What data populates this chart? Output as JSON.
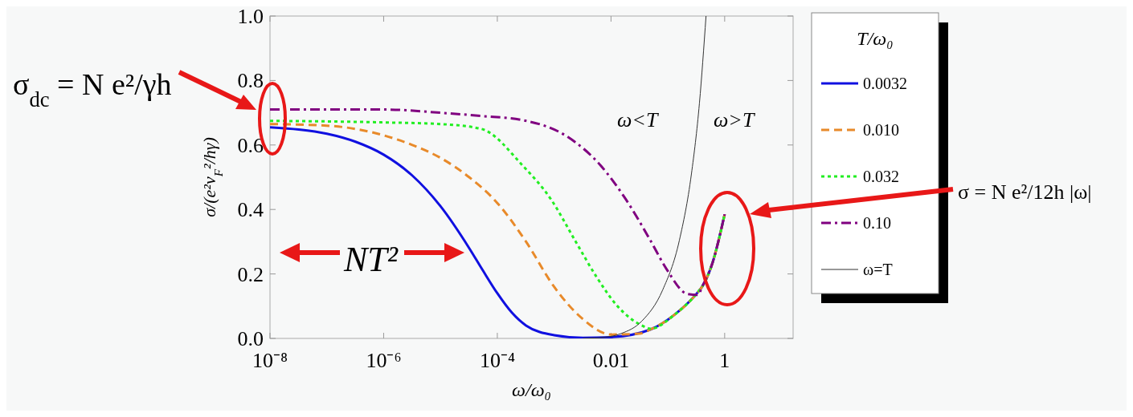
{
  "chart_data": {
    "type": "line",
    "xlabel": "ω/ω₀",
    "ylabel": "σ/(e²v$_{F}$²/hγ)",
    "legend_title": "T/ω₀",
    "legend": "right",
    "log": "x",
    "grid": false,
    "xlim": [
      1e-08,
      16
    ],
    "xticks": [
      {
        "value": 1e-08,
        "label": "10⁻⁸"
      },
      {
        "value": 1e-06,
        "label": "10⁻⁶"
      },
      {
        "value": 0.0001,
        "label": "10⁻⁴"
      },
      0.01,
      1
    ],
    "ylim": [
      0,
      1
    ],
    "yticks": [
      {
        "value": 0,
        "label": "0.0"
      },
      {
        "value": 0.2,
        "label": "0.2"
      },
      {
        "value": 0.4,
        "label": "0.4"
      },
      {
        "value": 0.6,
        "label": "0.6"
      },
      {
        "value": 0.8,
        "label": "0.8"
      },
      {
        "value": 1,
        "label": "1.0"
      }
    ],
    "series": [
      {
        "name": "0.0032",
        "color": "#1010e0",
        "line_style": "solid",
        "x": [
          1e-08,
          3.2e-08,
          1e-07,
          3.2e-07,
          1e-06,
          3.2e-06,
          1e-05,
          3.2e-05,
          5.6e-05,
          0.0001,
          0.00018,
          0.00032,
          0.001,
          0.0032,
          0.01,
          0.05,
          0.13,
          0.34,
          0.4,
          0.6,
          1
        ],
        "values": [
          0.655,
          0.648,
          0.635,
          0.61,
          0.57,
          0.505,
          0.41,
          0.28,
          0.21,
          0.14,
          0.08,
          0.04,
          0.01,
          0.002,
          0.004,
          0.028,
          0.073,
          0.144,
          0.16,
          0.23,
          0.385
        ]
      },
      {
        "name": "0.010",
        "color": "#e88a2a",
        "line_style": "dashed",
        "x": [
          1e-08,
          1e-07,
          1e-06,
          3.2e-06,
          1e-05,
          3.2e-05,
          0.0001,
          0.00032,
          0.001,
          0.0032,
          0.01,
          0.032,
          0.05,
          0.13,
          0.34,
          0.4,
          0.6,
          1
        ],
        "values": [
          0.665,
          0.66,
          0.63,
          0.6,
          0.56,
          0.5,
          0.42,
          0.3,
          0.16,
          0.06,
          0.012,
          0.015,
          0.028,
          0.073,
          0.144,
          0.16,
          0.23,
          0.385
        ]
      },
      {
        "name": "0.032",
        "color": "#22ee22",
        "line_style": "dotted",
        "x": [
          1e-08,
          1e-06,
          1e-05,
          5.2e-05,
          0.00028,
          0.00089,
          0.0024,
          0.0056,
          0.013,
          0.035,
          0.05,
          0.13,
          0.34,
          0.4,
          0.6,
          1
        ],
        "values": [
          0.675,
          0.67,
          0.665,
          0.65,
          0.536,
          0.43,
          0.3,
          0.19,
          0.1,
          0.04,
          0.03,
          0.073,
          0.144,
          0.16,
          0.23,
          0.385
        ]
      },
      {
        "name": "0.10",
        "color": "#800080",
        "line_style": "dashdot",
        "x": [
          1e-08,
          1e-06,
          1e-05,
          5.2e-05,
          0.00028,
          0.0017,
          0.0066,
          0.018,
          0.049,
          0.095,
          0.22,
          0.34,
          0.4,
          0.6,
          1
        ],
        "values": [
          0.71,
          0.71,
          0.7,
          0.69,
          0.677,
          0.626,
          0.536,
          0.433,
          0.305,
          0.215,
          0.138,
          0.135,
          0.16,
          0.23,
          0.385
        ]
      },
      {
        "name": "ω=T",
        "color": "#333333",
        "line_style": "solid",
        "x": [
          0.0032,
          0.008,
          0.015,
          0.035,
          0.081,
          0.16,
          0.26,
          0.36,
          0.47
        ],
        "values": [
          0,
          0.004,
          0.015,
          0.054,
          0.15,
          0.305,
          0.51,
          0.73,
          1.0
        ]
      }
    ],
    "annotations": [
      "σ$_{dc}$ = N e²/γh",
      "σ = N e²/12h |ω|",
      "NT²",
      "ω<T",
      "ω>T"
    ]
  }
}
